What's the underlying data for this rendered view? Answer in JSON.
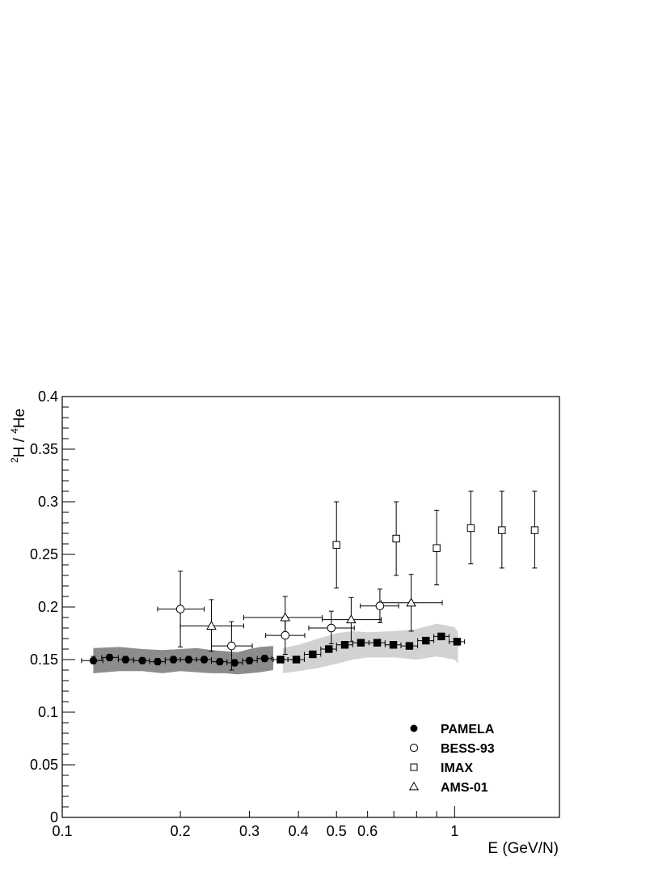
{
  "chart_data": {
    "type": "scatter",
    "title": "",
    "xlabel": "E (GeV/N)",
    "ylabel_parts": {
      "sup1": "2",
      "main1": "H / ",
      "sup2": "4",
      "main2": "He"
    },
    "xscale": "log",
    "xlim": [
      0.1,
      1.85
    ],
    "ylim": [
      0,
      0.4
    ],
    "grid": false,
    "legend_position": "bottom-right",
    "x_tick_labels": [
      "0.1",
      "0.2",
      "0.3",
      "0.4",
      "0.5",
      "0.6",
      "1"
    ],
    "x_tick_values": [
      0.1,
      0.2,
      0.3,
      0.4,
      0.5,
      0.6,
      1.0
    ],
    "y_tick_labels": [
      "0",
      "0.05",
      "0.1",
      "0.15",
      "0.2",
      "0.25",
      "0.3",
      "0.35",
      "0.4"
    ],
    "y_tick_values": [
      0,
      0.05,
      0.1,
      0.15,
      0.2,
      0.25,
      0.3,
      0.35,
      0.4
    ],
    "bands": [
      {
        "name": "PAMELA ToF systematic band",
        "color": "#8c8c8c",
        "x": [
          0.12,
          0.14,
          0.16,
          0.18,
          0.2,
          0.22,
          0.24,
          0.26,
          0.28,
          0.3,
          0.32,
          0.345
        ],
        "upper": [
          0.161,
          0.162,
          0.16,
          0.159,
          0.16,
          0.161,
          0.159,
          0.158,
          0.157,
          0.16,
          0.162,
          0.163
        ],
        "lower": [
          0.137,
          0.139,
          0.139,
          0.137,
          0.139,
          0.138,
          0.137,
          0.137,
          0.136,
          0.137,
          0.138,
          0.14
        ]
      },
      {
        "name": "PAMELA calorimeter systematic band",
        "color": "#d2d2d2",
        "x": [
          0.365,
          0.4,
          0.45,
          0.5,
          0.55,
          0.6,
          0.7,
          0.8,
          0.9,
          1.0,
          1.02
        ],
        "upper": [
          0.161,
          0.164,
          0.17,
          0.175,
          0.177,
          0.176,
          0.177,
          0.179,
          0.184,
          0.181,
          0.176
        ],
        "lower": [
          0.137,
          0.139,
          0.142,
          0.146,
          0.15,
          0.152,
          0.152,
          0.15,
          0.153,
          0.15,
          0.146
        ]
      }
    ],
    "series": [
      {
        "name": "PAMELA",
        "marker": "filled-circle",
        "points": [
          {
            "x": 0.12,
            "y": 0.149,
            "xerr": [
              0.112,
              0.127
            ],
            "yerr": [
              0.146,
              0.153
            ]
          },
          {
            "x": 0.132,
            "y": 0.152,
            "xerr": [
              0.126,
              0.139
            ],
            "yerr": [
              0.149,
              0.155
            ]
          },
          {
            "x": 0.145,
            "y": 0.15,
            "xerr": [
              0.139,
              0.152
            ],
            "yerr": [
              0.147,
              0.153
            ]
          },
          {
            "x": 0.16,
            "y": 0.149,
            "xerr": [
              0.152,
              0.167
            ],
            "yerr": [
              0.146,
              0.152
            ]
          },
          {
            "x": 0.175,
            "y": 0.148,
            "xerr": [
              0.167,
              0.183
            ],
            "yerr": [
              0.145,
              0.151
            ]
          },
          {
            "x": 0.192,
            "y": 0.15,
            "xerr": [
              0.183,
              0.2
            ],
            "yerr": [
              0.147,
              0.153
            ]
          },
          {
            "x": 0.21,
            "y": 0.15,
            "xerr": [
              0.2,
              0.22
            ],
            "yerr": [
              0.147,
              0.153
            ]
          },
          {
            "x": 0.23,
            "y": 0.15,
            "xerr": [
              0.22,
              0.24
            ],
            "yerr": [
              0.147,
              0.153
            ]
          },
          {
            "x": 0.252,
            "y": 0.148,
            "xerr": [
              0.24,
              0.263
            ],
            "yerr": [
              0.145,
              0.151
            ]
          },
          {
            "x": 0.275,
            "y": 0.147,
            "xerr": [
              0.263,
              0.288
            ],
            "yerr": [
              0.144,
              0.15
            ]
          },
          {
            "x": 0.3,
            "y": 0.149,
            "xerr": [
              0.288,
              0.314
            ],
            "yerr": [
              0.146,
              0.152
            ]
          },
          {
            "x": 0.328,
            "y": 0.151,
            "xerr": [
              0.314,
              0.342
            ],
            "yerr": [
              0.148,
              0.154
            ]
          }
        ]
      },
      {
        "name": "PAMELA calorimeter",
        "marker": "filled-square",
        "legend": false,
        "points": [
          {
            "x": 0.36,
            "y": 0.15,
            "xerr": [
              0.345,
              0.376
            ],
            "yerr": [
              0.147,
              0.153
            ]
          },
          {
            "x": 0.395,
            "y": 0.15,
            "xerr": [
              0.376,
              0.414
            ],
            "yerr": [
              0.147,
              0.153
            ]
          },
          {
            "x": 0.435,
            "y": 0.155,
            "xerr": [
              0.414,
              0.456
            ],
            "yerr": [
              0.152,
              0.158
            ]
          },
          {
            "x": 0.478,
            "y": 0.16,
            "xerr": [
              0.456,
              0.5
            ],
            "yerr": [
              0.157,
              0.163
            ]
          },
          {
            "x": 0.525,
            "y": 0.164,
            "xerr": [
              0.5,
              0.55
            ],
            "yerr": [
              0.161,
              0.167
            ]
          },
          {
            "x": 0.577,
            "y": 0.166,
            "xerr": [
              0.55,
              0.605
            ],
            "yerr": [
              0.163,
              0.169
            ]
          },
          {
            "x": 0.635,
            "y": 0.166,
            "xerr": [
              0.605,
              0.665
            ],
            "yerr": [
              0.163,
              0.169
            ]
          },
          {
            "x": 0.698,
            "y": 0.164,
            "xerr": [
              0.665,
              0.73
            ],
            "yerr": [
              0.161,
              0.167
            ]
          },
          {
            "x": 0.767,
            "y": 0.163,
            "xerr": [
              0.73,
              0.805
            ],
            "yerr": [
              0.16,
              0.166
            ]
          },
          {
            "x": 0.845,
            "y": 0.168,
            "xerr": [
              0.805,
              0.885
            ],
            "yerr": [
              0.165,
              0.171
            ]
          },
          {
            "x": 0.925,
            "y": 0.172,
            "xerr": [
              0.885,
              0.968
            ],
            "yerr": [
              0.169,
              0.175
            ]
          },
          {
            "x": 1.015,
            "y": 0.167,
            "xerr": [
              0.968,
              1.06
            ],
            "yerr": [
              0.164,
              0.17
            ]
          }
        ]
      },
      {
        "name": "BESS-93",
        "marker": "open-circle",
        "points": [
          {
            "x": 0.2,
            "y": 0.198,
            "xerr": [
              0.175,
              0.23
            ],
            "yerr": [
              0.162,
              0.234
            ]
          },
          {
            "x": 0.27,
            "y": 0.163,
            "xerr": [
              0.24,
              0.305
            ],
            "yerr": [
              0.14,
              0.186
            ]
          },
          {
            "x": 0.37,
            "y": 0.173,
            "xerr": [
              0.33,
              0.415
            ],
            "yerr": [
              0.155,
              0.191
            ]
          },
          {
            "x": 0.485,
            "y": 0.18,
            "xerr": [
              0.425,
              0.555
            ],
            "yerr": [
              0.165,
              0.196
            ]
          },
          {
            "x": 0.645,
            "y": 0.201,
            "xerr": [
              0.575,
              0.72
            ],
            "yerr": [
              0.185,
              0.217
            ]
          }
        ]
      },
      {
        "name": "IMAX",
        "marker": "open-square",
        "points": [
          {
            "x": 0.5,
            "y": 0.259,
            "yerr": [
              0.218,
              0.3
            ]
          },
          {
            "x": 0.71,
            "y": 0.265,
            "yerr": [
              0.23,
              0.3
            ]
          },
          {
            "x": 0.9,
            "y": 0.256,
            "yerr": [
              0.221,
              0.292
            ]
          },
          {
            "x": 1.1,
            "y": 0.275,
            "yerr": [
              0.241,
              0.31
            ]
          },
          {
            "x": 1.32,
            "y": 0.273,
            "yerr": [
              0.237,
              0.31
            ]
          },
          {
            "x": 1.6,
            "y": 0.273,
            "yerr": [
              0.237,
              0.31
            ]
          }
        ]
      },
      {
        "name": "AMS-01",
        "marker": "open-triangle",
        "points": [
          {
            "x": 0.24,
            "y": 0.182,
            "xerr": [
              0.2,
              0.29
            ],
            "yerr": [
              0.158,
              0.207
            ]
          },
          {
            "x": 0.37,
            "y": 0.19,
            "xerr": [
              0.29,
              0.46
            ],
            "yerr": [
              0.17,
              0.21
            ]
          },
          {
            "x": 0.545,
            "y": 0.188,
            "xerr": [
              0.46,
              0.65
            ],
            "yerr": [
              0.167,
              0.209
            ]
          },
          {
            "x": 0.775,
            "y": 0.204,
            "xerr": [
              0.65,
              0.93
            ],
            "yerr": [
              0.177,
              0.231
            ]
          }
        ]
      }
    ],
    "legend": [
      {
        "label": "PAMELA",
        "marker": "filled-circle"
      },
      {
        "label": "BESS-93",
        "marker": "open-circle"
      },
      {
        "label": "IMAX",
        "marker": "open-square"
      },
      {
        "label": "AMS-01",
        "marker": "open-triangle"
      }
    ]
  }
}
